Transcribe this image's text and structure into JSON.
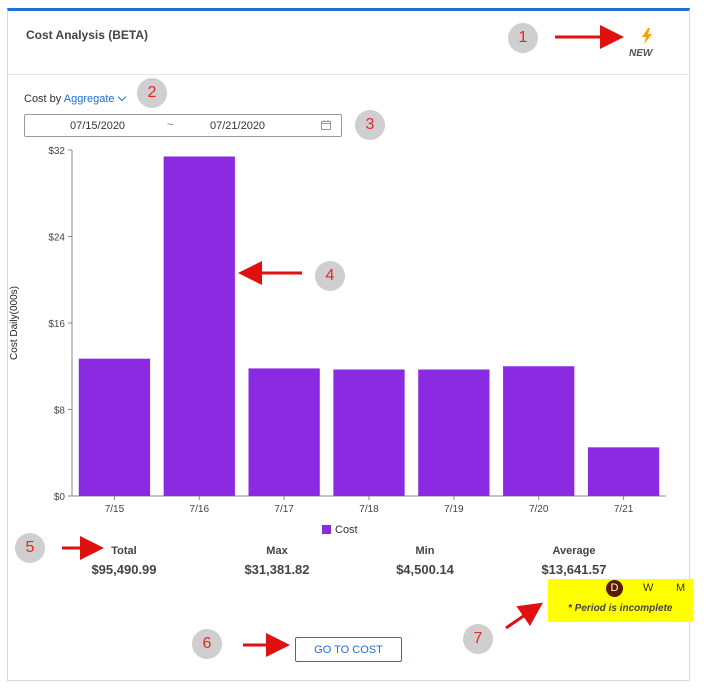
{
  "card": {
    "title": "Cost Analysis (BETA)",
    "new_label": "NEW",
    "cost_by_prefix": "Cost by",
    "cost_by_value": "Aggregate",
    "date_start": "07/15/2020",
    "date_sep": "~",
    "date_end": "07/21/2020"
  },
  "chart_data": {
    "type": "bar",
    "categories": [
      "7/15",
      "7/16",
      "7/17",
      "7/18",
      "7/19",
      "7/20",
      "7/21"
    ],
    "series": [
      {
        "name": "Cost",
        "values": [
          12.7,
          31.4,
          11.8,
          11.7,
          11.7,
          12.0,
          4.5
        ]
      }
    ],
    "ylabel": "Cost Daily(000s)",
    "yticks": [
      "$0",
      "$8",
      "$16",
      "$24",
      "$32"
    ],
    "ytick_values": [
      0,
      8,
      16,
      24,
      32
    ],
    "ylim": [
      0,
      32
    ],
    "grid": false,
    "legend": "bottom",
    "color": "#8a2be2"
  },
  "stats": {
    "total_label": "Total",
    "total_value": "$95,490.99",
    "max_label": "Max",
    "max_value": "$31,381.82",
    "min_label": "Min",
    "min_value": "$4,500.14",
    "average_label": "Average",
    "average_value": "$13,641.57"
  },
  "period": {
    "options": [
      "D",
      "W",
      "M"
    ],
    "selected": "D",
    "note": "* Period is incomplete"
  },
  "go_button": "GO TO COST",
  "annotations": [
    "1",
    "2",
    "3",
    "4",
    "5",
    "6",
    "7"
  ],
  "colors": {
    "accent": "#1f6fd6",
    "bar": "#8a2be2",
    "annotation_arrow": "#e01010",
    "highlight": "#ffff00",
    "new_icon": "#f5a300"
  }
}
